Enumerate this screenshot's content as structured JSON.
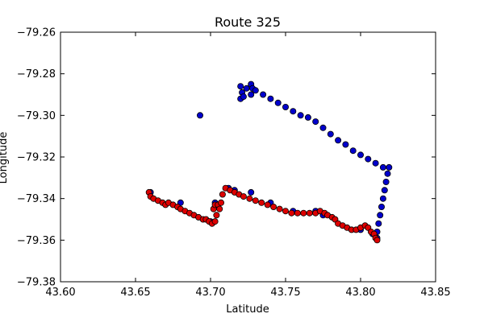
{
  "chart_data": {
    "type": "scatter",
    "title": "Route 325",
    "xlabel": "Latitude",
    "ylabel": "Longitude",
    "xlim": [
      43.6,
      43.85
    ],
    "ylim": [
      -79.38,
      -79.26
    ],
    "y_inverted": true,
    "grid": false,
    "legend": "none",
    "xticks": [
      "43.60",
      "43.65",
      "43.70",
      "43.75",
      "43.80",
      "43.85"
    ],
    "xtick_values": [
      43.6,
      43.65,
      43.7,
      43.75,
      43.8,
      43.85
    ],
    "yticks": [
      "−79.26",
      "−79.28",
      "−79.30",
      "−79.32",
      "−79.34",
      "−79.36",
      "−79.38"
    ],
    "ytick_values": [
      -79.26,
      -79.28,
      -79.3,
      -79.32,
      -79.34,
      -79.36,
      -79.38
    ],
    "series": [
      {
        "color": "#0000cc",
        "points": [
          [
            43.72,
            -79.286
          ],
          [
            43.721,
            -79.289
          ],
          [
            43.72,
            -79.292
          ],
          [
            43.722,
            -79.291
          ],
          [
            43.724,
            -79.287
          ],
          [
            43.727,
            -79.285
          ],
          [
            43.728,
            -79.287
          ],
          [
            43.727,
            -79.29
          ],
          [
            43.73,
            -79.288
          ],
          [
            43.735,
            -79.29
          ],
          [
            43.74,
            -79.292
          ],
          [
            43.745,
            -79.294
          ],
          [
            43.75,
            -79.296
          ],
          [
            43.755,
            -79.298
          ],
          [
            43.76,
            -79.3
          ],
          [
            43.765,
            -79.301
          ],
          [
            43.77,
            -79.303
          ],
          [
            43.775,
            -79.306
          ],
          [
            43.78,
            -79.309
          ],
          [
            43.785,
            -79.312
          ],
          [
            43.79,
            -79.314
          ],
          [
            43.795,
            -79.317
          ],
          [
            43.8,
            -79.319
          ],
          [
            43.805,
            -79.321
          ],
          [
            43.81,
            -79.323
          ],
          [
            43.815,
            -79.325
          ],
          [
            43.819,
            -79.325
          ],
          [
            43.818,
            -79.328
          ],
          [
            43.817,
            -79.332
          ],
          [
            43.816,
            -79.336
          ],
          [
            43.815,
            -79.34
          ],
          [
            43.814,
            -79.344
          ],
          [
            43.813,
            -79.348
          ],
          [
            43.812,
            -79.352
          ],
          [
            43.811,
            -79.356
          ],
          [
            43.811,
            -79.359
          ],
          [
            43.693,
            -79.3
          ],
          [
            43.68,
            -79.342
          ],
          [
            43.703,
            -79.342
          ],
          [
            43.712,
            -79.335
          ],
          [
            43.716,
            -79.336
          ],
          [
            43.727,
            -79.337
          ],
          [
            43.74,
            -79.342
          ],
          [
            43.755,
            -79.346
          ],
          [
            43.77,
            -79.346
          ],
          [
            43.775,
            -79.348
          ],
          [
            43.8,
            -79.355
          ],
          [
            43.808,
            -79.357
          ],
          [
            43.66,
            -79.337
          ],
          [
            43.7,
            -79.351
          ]
        ]
      },
      {
        "color": "#dd0000",
        "points": [
          [
            43.659,
            -79.337
          ],
          [
            43.66,
            -79.339
          ],
          [
            43.662,
            -79.34
          ],
          [
            43.665,
            -79.341
          ],
          [
            43.668,
            -79.342
          ],
          [
            43.67,
            -79.343
          ],
          [
            43.672,
            -79.342
          ],
          [
            43.675,
            -79.343
          ],
          [
            43.678,
            -79.344
          ],
          [
            43.68,
            -79.345
          ],
          [
            43.683,
            -79.346
          ],
          [
            43.686,
            -79.347
          ],
          [
            43.689,
            -79.348
          ],
          [
            43.692,
            -79.349
          ],
          [
            43.695,
            -79.35
          ],
          [
            43.697,
            -79.35
          ],
          [
            43.699,
            -79.351
          ],
          [
            43.701,
            -79.352
          ],
          [
            43.703,
            -79.351
          ],
          [
            43.704,
            -79.348
          ],
          [
            43.702,
            -79.345
          ],
          [
            43.703,
            -79.343
          ],
          [
            43.705,
            -79.343
          ],
          [
            43.706,
            -79.345
          ],
          [
            43.707,
            -79.342
          ],
          [
            43.708,
            -79.338
          ],
          [
            43.71,
            -79.335
          ],
          [
            43.713,
            -79.336
          ],
          [
            43.716,
            -79.337
          ],
          [
            43.719,
            -79.338
          ],
          [
            43.722,
            -79.339
          ],
          [
            43.726,
            -79.34
          ],
          [
            43.73,
            -79.341
          ],
          [
            43.734,
            -79.342
          ],
          [
            43.738,
            -79.343
          ],
          [
            43.742,
            -79.344
          ],
          [
            43.746,
            -79.345
          ],
          [
            43.75,
            -79.346
          ],
          [
            43.754,
            -79.347
          ],
          [
            43.758,
            -79.347
          ],
          [
            43.762,
            -79.347
          ],
          [
            43.766,
            -79.347
          ],
          [
            43.77,
            -79.347
          ],
          [
            43.773,
            -79.346
          ],
          [
            43.776,
            -79.347
          ],
          [
            43.778,
            -79.348
          ],
          [
            43.781,
            -79.349
          ],
          [
            43.783,
            -79.35
          ],
          [
            43.785,
            -79.352
          ],
          [
            43.788,
            -79.353
          ],
          [
            43.791,
            -79.354
          ],
          [
            43.794,
            -79.355
          ],
          [
            43.797,
            -79.355
          ],
          [
            43.8,
            -79.354
          ],
          [
            43.803,
            -79.353
          ],
          [
            43.805,
            -79.354
          ],
          [
            43.807,
            -79.356
          ],
          [
            43.809,
            -79.357
          ],
          [
            43.81,
            -79.359
          ],
          [
            43.811,
            -79.36
          ]
        ]
      }
    ]
  }
}
